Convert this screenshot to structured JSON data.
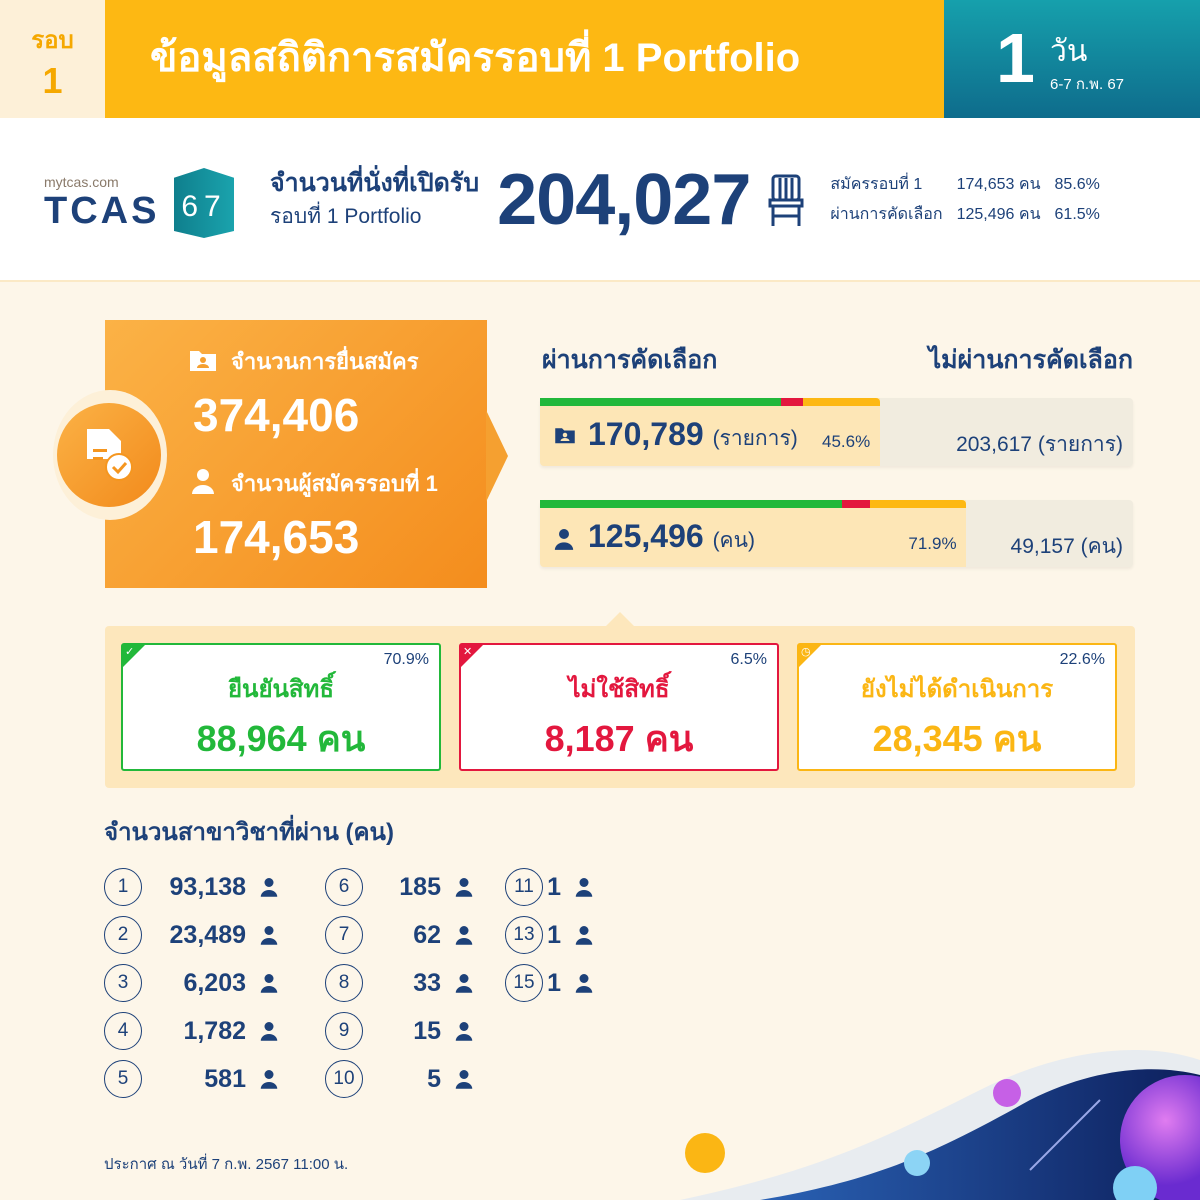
{
  "header": {
    "round_label": "รอบ",
    "round_number": "1",
    "title": "ข้อมูลสถิติการสมัครรอบที่ 1 Portfolio",
    "days_number": "1",
    "days_unit": "วัน",
    "date_range": "6-7 ก.พ. 67"
  },
  "logo": {
    "site": "mytcas.com",
    "brand": "TCAS",
    "year": "67"
  },
  "seats": {
    "label": "จำนวนที่นั่งที่เปิดรับ",
    "sublabel": "รอบที่ 1 Portfolio",
    "value": "204,027",
    "icon": "chair-icon",
    "stats": [
      {
        "label": "สมัครรอบที่ 1",
        "value": "174,653 คน",
        "percent": "85.6%"
      },
      {
        "label": "ผ่านการคัดเลือก",
        "value": "125,496 คน",
        "percent": "61.5%"
      }
    ]
  },
  "applications": {
    "label": "จำนวนการยื่นสมัคร",
    "value": "374,406",
    "applicants_label": "จำนวนผู้สมัครรอบที่ 1",
    "applicants_value": "174,653"
  },
  "selection": {
    "passed_heading": "ผ่านการคัดเลือก",
    "failed_heading": "ไม่ผ่านการคัดเลือก",
    "bars": [
      {
        "passed": "170,789",
        "unit": "(รายการ)",
        "percent": "45.6%",
        "percent_value": 45.6,
        "failed": "203,617",
        "failed_unit": "(รายการ)",
        "icon": "folder-user-icon",
        "confirmed_pct": 70.9,
        "declined_pct": 6.5,
        "pending_pct": 22.6
      },
      {
        "passed": "125,496",
        "unit": "(คน)",
        "percent": "71.9%",
        "percent_value": 71.9,
        "failed": "49,157",
        "failed_unit": "(คน)",
        "icon": "user-icon",
        "confirmed_pct": 70.9,
        "declined_pct": 6.5,
        "pending_pct": 22.6
      }
    ]
  },
  "outcomes": [
    {
      "title": "ยืนยันสิทธิ์",
      "percent": "70.9%",
      "value": "88,964 คน",
      "color": "#22b83a",
      "icon": "check-icon"
    },
    {
      "title": "ไม่ใช้สิทธิ์",
      "percent": "6.5%",
      "value": "8,187 คน",
      "color": "#e3173e",
      "icon": "x-icon"
    },
    {
      "title": "ยังไม่ได้ดำเนินการ",
      "percent": "22.6%",
      "value": "28,345 คน",
      "color": "#fbb614",
      "icon": "clock-icon"
    }
  ],
  "majors": {
    "title": "จำนวนสาขาวิชาที่ผ่าน (คน)",
    "items": [
      {
        "n": "1",
        "v": "93,138"
      },
      {
        "n": "2",
        "v": "23,489"
      },
      {
        "n": "3",
        "v": "6,203"
      },
      {
        "n": "4",
        "v": "1,782"
      },
      {
        "n": "5",
        "v": "581"
      },
      {
        "n": "6",
        "v": "185"
      },
      {
        "n": "7",
        "v": "62"
      },
      {
        "n": "8",
        "v": "33"
      },
      {
        "n": "9",
        "v": "15"
      },
      {
        "n": "10",
        "v": "5"
      },
      {
        "n": "11",
        "v": "1"
      },
      {
        "n": "13",
        "v": "1"
      },
      {
        "n": "15",
        "v": "1"
      }
    ]
  },
  "footer": "ประกาศ ณ วันที่ 7 ก.พ. 2567 11:00 น.",
  "colors": {
    "navy": "#1d4179",
    "yellow": "#fdb813",
    "orange": "#f48d1d",
    "teal": "#0e6c8c",
    "green": "#22b83a",
    "red": "#e3173e"
  }
}
